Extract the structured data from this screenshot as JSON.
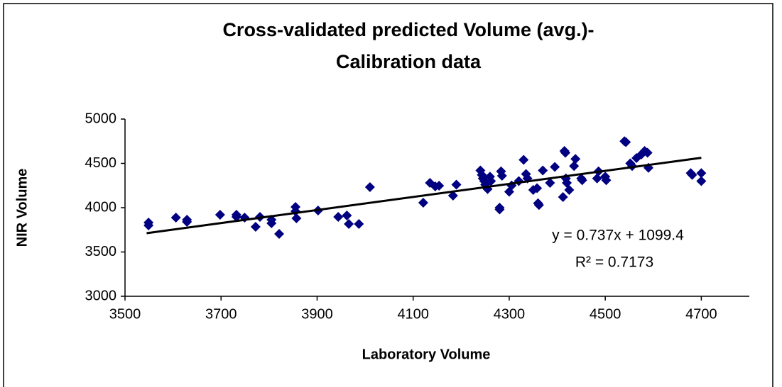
{
  "chart_data": {
    "type": "scatter",
    "title": "Cross-validated predicted Volume (avg.)-",
    "subtitle": "Calibration data",
    "x_label": "Laboratory Volume",
    "y_label": "NIR Volume",
    "color": "#000080",
    "xlim": [
      3500,
      4800
    ],
    "xticks": [
      3500,
      3700,
      3900,
      4100,
      4300,
      4500,
      4700
    ],
    "ylim": [
      3000,
      5000
    ],
    "yticks": [
      3000,
      3500,
      4000,
      4500,
      5000
    ],
    "x": [
      3549,
      3549,
      3606,
      3629,
      3629,
      3698,
      3732,
      3732,
      3749,
      3772,
      3781,
      3805,
      3805,
      3821,
      3855,
      3855,
      3857,
      3902,
      3944,
      3962,
      3966,
      3987,
      4010,
      4121,
      4135,
      4146,
      4154,
      4183,
      4190,
      4240,
      4243,
      4245,
      4248,
      4250,
      4255,
      4260,
      4262,
      4280,
      4280,
      4283,
      4285,
      4300,
      4305,
      4320,
      4330,
      4335,
      4338,
      4350,
      4358,
      4360,
      4362,
      4370,
      4385,
      4395,
      4412,
      4415,
      4417,
      4418,
      4420,
      4425,
      4435,
      4438,
      4450,
      4452,
      4483,
      4486,
      4500,
      4502,
      4540,
      4543,
      4552,
      4556,
      4565,
      4575,
      4582,
      4588,
      4590,
      4678,
      4681,
      4700,
      4700
    ],
    "y": [
      3800,
      3832,
      3888,
      3840,
      3864,
      3920,
      3920,
      3896,
      3888,
      3784,
      3896,
      3864,
      3824,
      3704,
      4008,
      3960,
      3880,
      3968,
      3896,
      3912,
      3816,
      3816,
      4232,
      4056,
      4280,
      4240,
      4248,
      4136,
      4260,
      4420,
      4370,
      4330,
      4300,
      4260,
      4210,
      4350,
      4300,
      4000,
      3980,
      4410,
      4360,
      4180,
      4250,
      4300,
      4540,
      4380,
      4330,
      4200,
      4220,
      4050,
      4030,
      4420,
      4280,
      4460,
      4120,
      4640,
      4620,
      4330,
      4280,
      4200,
      4470,
      4550,
      4330,
      4310,
      4330,
      4410,
      4350,
      4310,
      4750,
      4740,
      4500,
      4470,
      4560,
      4600,
      4640,
      4620,
      4450,
      4390,
      4370,
      4390,
      4300
    ],
    "trendline": {
      "slope": 0.737,
      "intercept": 1099.4,
      "x": [
        3545,
        4700
      ]
    },
    "equation": "y = 0.737x + 1099.4",
    "r_squared": "R² = 0.7173"
  }
}
